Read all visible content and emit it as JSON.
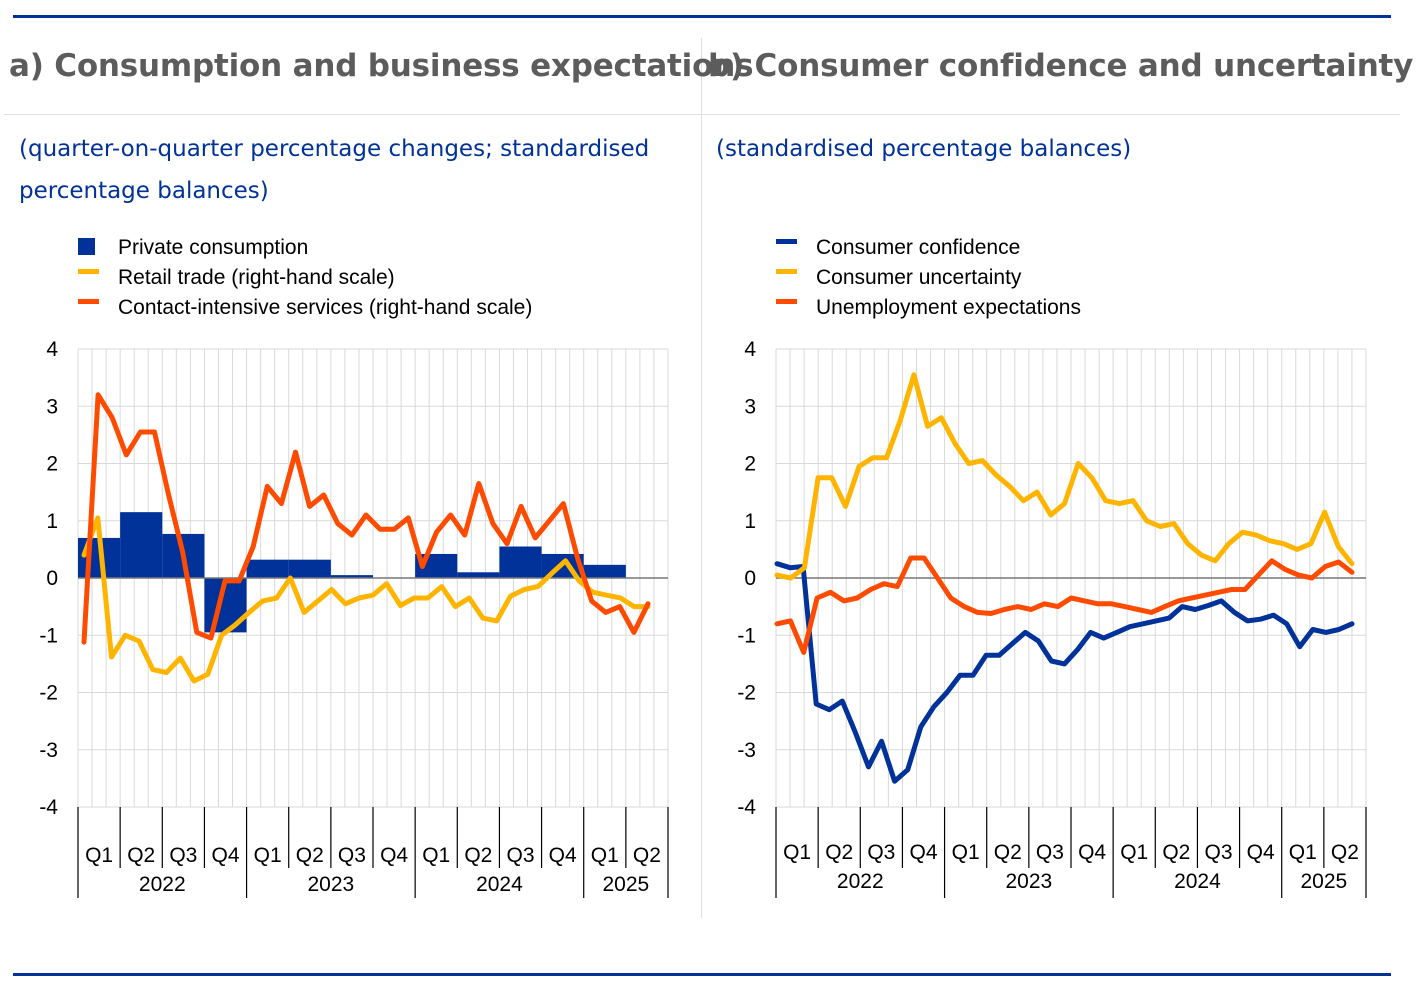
{
  "panels": [
    {
      "title": "a) Consumption and business expectations",
      "subtitle": "(quarter-on-quarter percentage changes; standardised percentage balances)"
    },
    {
      "title": "b) Consumer confidence and uncertainty",
      "subtitle": "(standardised percentage balances)"
    }
  ],
  "colors": {
    "blue": "#003299",
    "yellow": "#ffb400",
    "orange": "#ff4b00",
    "rule": "#003299",
    "title": "#5c5c5c"
  },
  "chart_data": [
    {
      "type": "bar",
      "ylim": [
        -4,
        4
      ],
      "yticks": [
        "4",
        "3",
        "2",
        "1",
        "0",
        "-1",
        "-2",
        "-3",
        "-4"
      ],
      "quarters": [
        "Q1",
        "Q2",
        "Q3",
        "Q4",
        "Q1",
        "Q2",
        "Q3",
        "Q4",
        "Q1",
        "Q2",
        "Q3",
        "Q4",
        "Q1",
        "Q2"
      ],
      "years": [
        "2022",
        "2023",
        "2024",
        "2025"
      ],
      "legend": [
        "Private consumption",
        "Retail trade (right-hand scale)",
        "Contact-intensive services (right-hand scale)"
      ],
      "series": [
        {
          "name": "Private consumption",
          "kind": "bar",
          "color": "#003299",
          "values": [
            0.7,
            1.15,
            0.77,
            -0.95,
            0.32,
            0.32,
            0.05,
            0.0,
            0.42,
            0.1,
            0.55,
            0.42,
            0.23,
            0.0
          ]
        },
        {
          "name": "Retail trade (right-hand scale)",
          "kind": "line",
          "color": "#ffb400",
          "values": [
            0.4,
            1.05,
            -1.38,
            -1.0,
            -1.1,
            -1.6,
            -1.65,
            -1.4,
            -1.8,
            -1.68,
            -1.0,
            -0.82,
            -0.6,
            -0.4,
            -0.35,
            0.0,
            -0.6,
            -0.4,
            -0.2,
            -0.45,
            -0.35,
            -0.3,
            -0.1,
            -0.48,
            -0.35,
            -0.35,
            -0.15,
            -0.5,
            -0.35,
            -0.7,
            -0.75,
            -0.32,
            -0.2,
            -0.15,
            0.08,
            0.3,
            -0.05,
            -0.25,
            -0.3,
            -0.35,
            -0.5,
            -0.5
          ]
        },
        {
          "name": "Contact-intensive services (right-hand scale)",
          "kind": "line",
          "color": "#ff4b00",
          "values": [
            -1.12,
            3.2,
            2.8,
            2.15,
            2.55,
            2.55,
            1.45,
            0.45,
            -0.95,
            -1.05,
            -0.05,
            -0.05,
            0.55,
            1.6,
            1.3,
            2.2,
            1.25,
            1.45,
            0.95,
            0.75,
            1.1,
            0.85,
            0.85,
            1.05,
            0.2,
            0.8,
            1.1,
            0.75,
            1.65,
            0.95,
            0.6,
            1.25,
            0.7,
            1.0,
            1.3,
            0.35,
            -0.4,
            -0.6,
            -0.5,
            -0.95,
            -0.45
          ]
        }
      ]
    },
    {
      "type": "line",
      "ylim": [
        -4,
        4
      ],
      "yticks": [
        "4",
        "3",
        "2",
        "1",
        "0",
        "-1",
        "-2",
        "-3",
        "-4"
      ],
      "quarters": [
        "Q1",
        "Q2",
        "Q3",
        "Q4",
        "Q1",
        "Q2",
        "Q3",
        "Q4",
        "Q1",
        "Q2",
        "Q3",
        "Q4",
        "Q1",
        "Q2"
      ],
      "years": [
        "2022",
        "2023",
        "2024",
        "2025"
      ],
      "legend": [
        "Consumer confidence",
        "Consumer uncertainty",
        "Unemployment expectations"
      ],
      "series": [
        {
          "name": "Consumer confidence",
          "color": "#003299",
          "values": [
            0.25,
            0.18,
            0.2,
            -2.2,
            -2.3,
            -2.15,
            -2.7,
            -3.3,
            -2.85,
            -3.55,
            -3.35,
            -2.6,
            -2.25,
            -2.0,
            -1.7,
            -1.7,
            -1.35,
            -1.35,
            -1.15,
            -0.95,
            -1.1,
            -1.45,
            -1.5,
            -1.25,
            -0.95,
            -1.05,
            -0.95,
            -0.85,
            -0.8,
            -0.75,
            -0.7,
            -0.5,
            -0.55,
            -0.48,
            -0.4,
            -0.6,
            -0.75,
            -0.72,
            -0.65,
            -0.8,
            -1.2,
            -0.9,
            -0.95,
            -0.9,
            -0.8
          ]
        },
        {
          "name": "Consumer uncertainty",
          "color": "#ffb400",
          "values": [
            0.05,
            0.0,
            0.18,
            1.75,
            1.75,
            1.25,
            1.95,
            2.1,
            2.1,
            2.75,
            3.55,
            2.65,
            2.8,
            2.35,
            2.0,
            2.05,
            1.8,
            1.6,
            1.35,
            1.5,
            1.1,
            1.3,
            2.0,
            1.75,
            1.35,
            1.3,
            1.35,
            1.0,
            0.9,
            0.95,
            0.6,
            0.4,
            0.3,
            0.6,
            0.8,
            0.75,
            0.65,
            0.6,
            0.5,
            0.6,
            1.15,
            0.55,
            0.25
          ]
        },
        {
          "name": "Unemployment expectations",
          "color": "#ff4b00",
          "values": [
            -0.8,
            -0.75,
            -1.3,
            -0.35,
            -0.25,
            -0.4,
            -0.35,
            -0.2,
            -0.1,
            -0.15,
            0.35,
            0.35,
            0.0,
            -0.35,
            -0.5,
            -0.6,
            -0.62,
            -0.55,
            -0.5,
            -0.55,
            -0.45,
            -0.5,
            -0.35,
            -0.4,
            -0.45,
            -0.45,
            -0.5,
            -0.55,
            -0.6,
            -0.5,
            -0.4,
            -0.35,
            -0.3,
            -0.25,
            -0.2,
            -0.2,
            0.05,
            0.3,
            0.15,
            0.05,
            0.0,
            0.2,
            0.28,
            0.1
          ]
        }
      ]
    }
  ]
}
